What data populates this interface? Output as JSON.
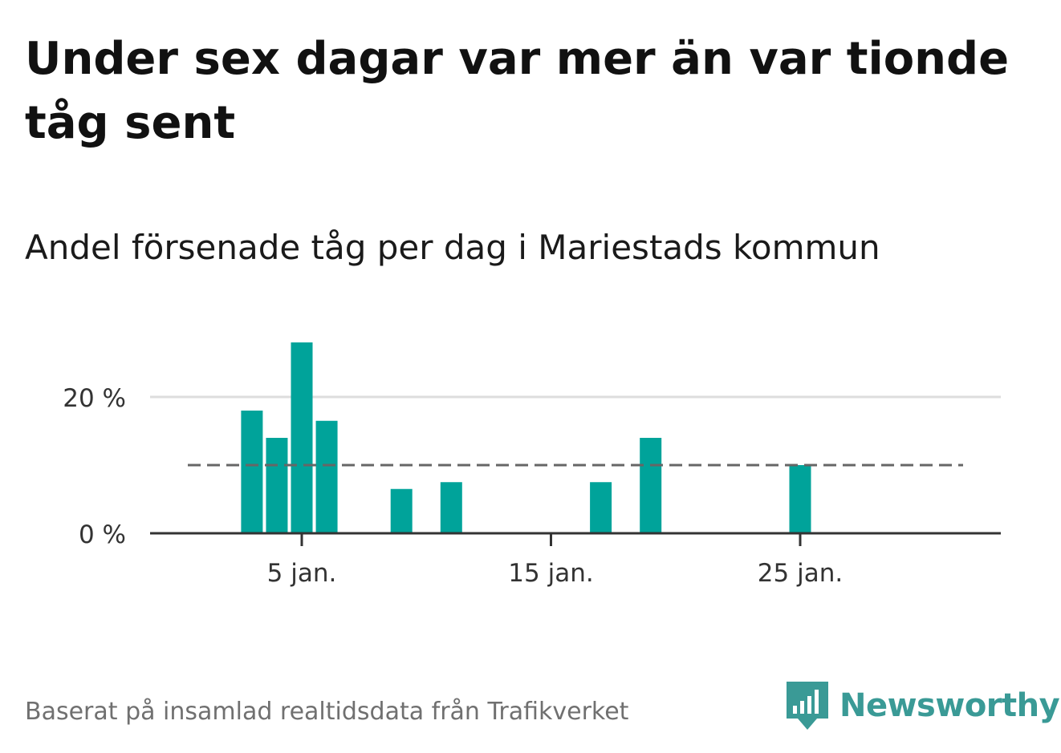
{
  "header": {
    "title": "Under sex dagar var mer än var tionde tåg sent",
    "subtitle": "Andel försenade tåg per dag i Mariestads kommun"
  },
  "footer": {
    "source": "Baserat på insamlad realtidsdata från Trafikverket",
    "brand": "Newsworthy"
  },
  "colors": {
    "bar": "#00a39a",
    "grid": "#dddddd",
    "axis": "#333333",
    "reference_line": "#666666",
    "brand": "#3a9a96"
  },
  "chart_data": {
    "type": "bar",
    "x_unit": "day of January",
    "x": [
      1,
      2,
      3,
      4,
      5,
      6,
      7,
      8,
      9,
      10,
      11,
      12,
      13,
      14,
      15,
      16,
      17,
      18,
      19,
      20,
      21,
      22,
      23,
      24,
      25,
      26,
      27,
      28,
      29,
      30,
      31
    ],
    "values": [
      0,
      0,
      18,
      14,
      28,
      16.5,
      0,
      0,
      6.5,
      0,
      7.5,
      0,
      0,
      0,
      0,
      0,
      7.5,
      0,
      14,
      0,
      0,
      0,
      0,
      0,
      10,
      0,
      0,
      0,
      0,
      0,
      0
    ],
    "ylim": [
      0,
      28
    ],
    "yticks": [
      {
        "value": 0,
        "label": "0 %"
      },
      {
        "value": 20,
        "label": "20 %"
      }
    ],
    "xticks": [
      {
        "value": 5,
        "label": "5 jan."
      },
      {
        "value": 15,
        "label": "15 jan."
      },
      {
        "value": 25,
        "label": "25 jan."
      }
    ],
    "reference_line": {
      "value": 10,
      "style": "dashed"
    },
    "grid": true,
    "legend": "none"
  }
}
